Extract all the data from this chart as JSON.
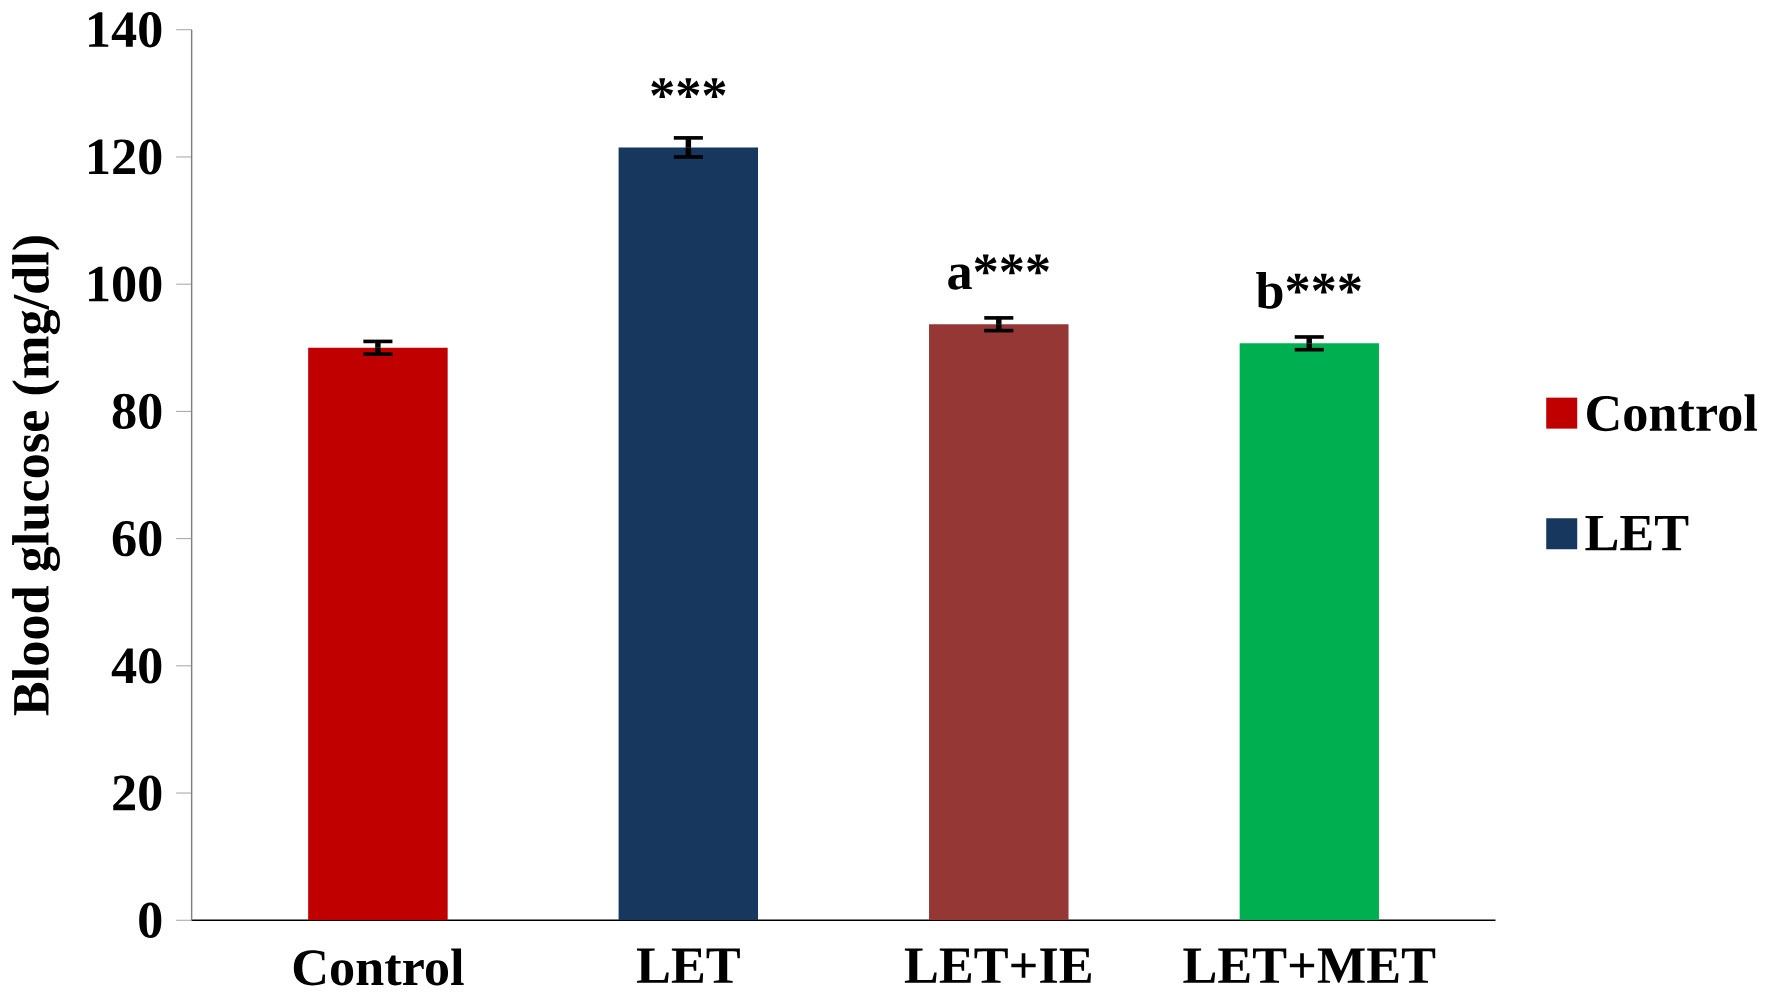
{
  "chart_data": {
    "type": "bar",
    "ylabel": "Blood glucose (mg/dl)",
    "categories": [
      "Control",
      "LET",
      "LET+IE",
      "LET+MET"
    ],
    "series": [
      {
        "name": "Control",
        "color": "#c00000",
        "values": [
          90,
          null,
          null,
          null
        ],
        "errors": [
          1,
          null,
          null,
          null
        ]
      },
      {
        "name": "LET",
        "color": "#17375e",
        "values": [
          null,
          121.5,
          null,
          null
        ],
        "errors": [
          null,
          1.5,
          null,
          null
        ]
      },
      {
        "color": "#953735",
        "values": [
          null,
          null,
          93.7,
          null
        ],
        "errors": [
          null,
          null,
          1,
          null
        ]
      },
      {
        "color": "#00b050",
        "values": [
          null,
          null,
          null,
          90.7
        ],
        "errors": [
          null,
          null,
          null,
          1
        ]
      }
    ],
    "ylim": [
      0,
      140
    ],
    "yticks": [
      0,
      20,
      40,
      60,
      80,
      100,
      120,
      140
    ],
    "annotations": [
      {
        "text": "***",
        "x": "LET",
        "y": 121.5
      },
      {
        "text": "a***",
        "x": "LET+IE",
        "y": 93.7
      },
      {
        "text": "b***",
        "x": "LET+MET",
        "y": 90.7
      }
    ],
    "grid": false,
    "legend": "right"
  }
}
